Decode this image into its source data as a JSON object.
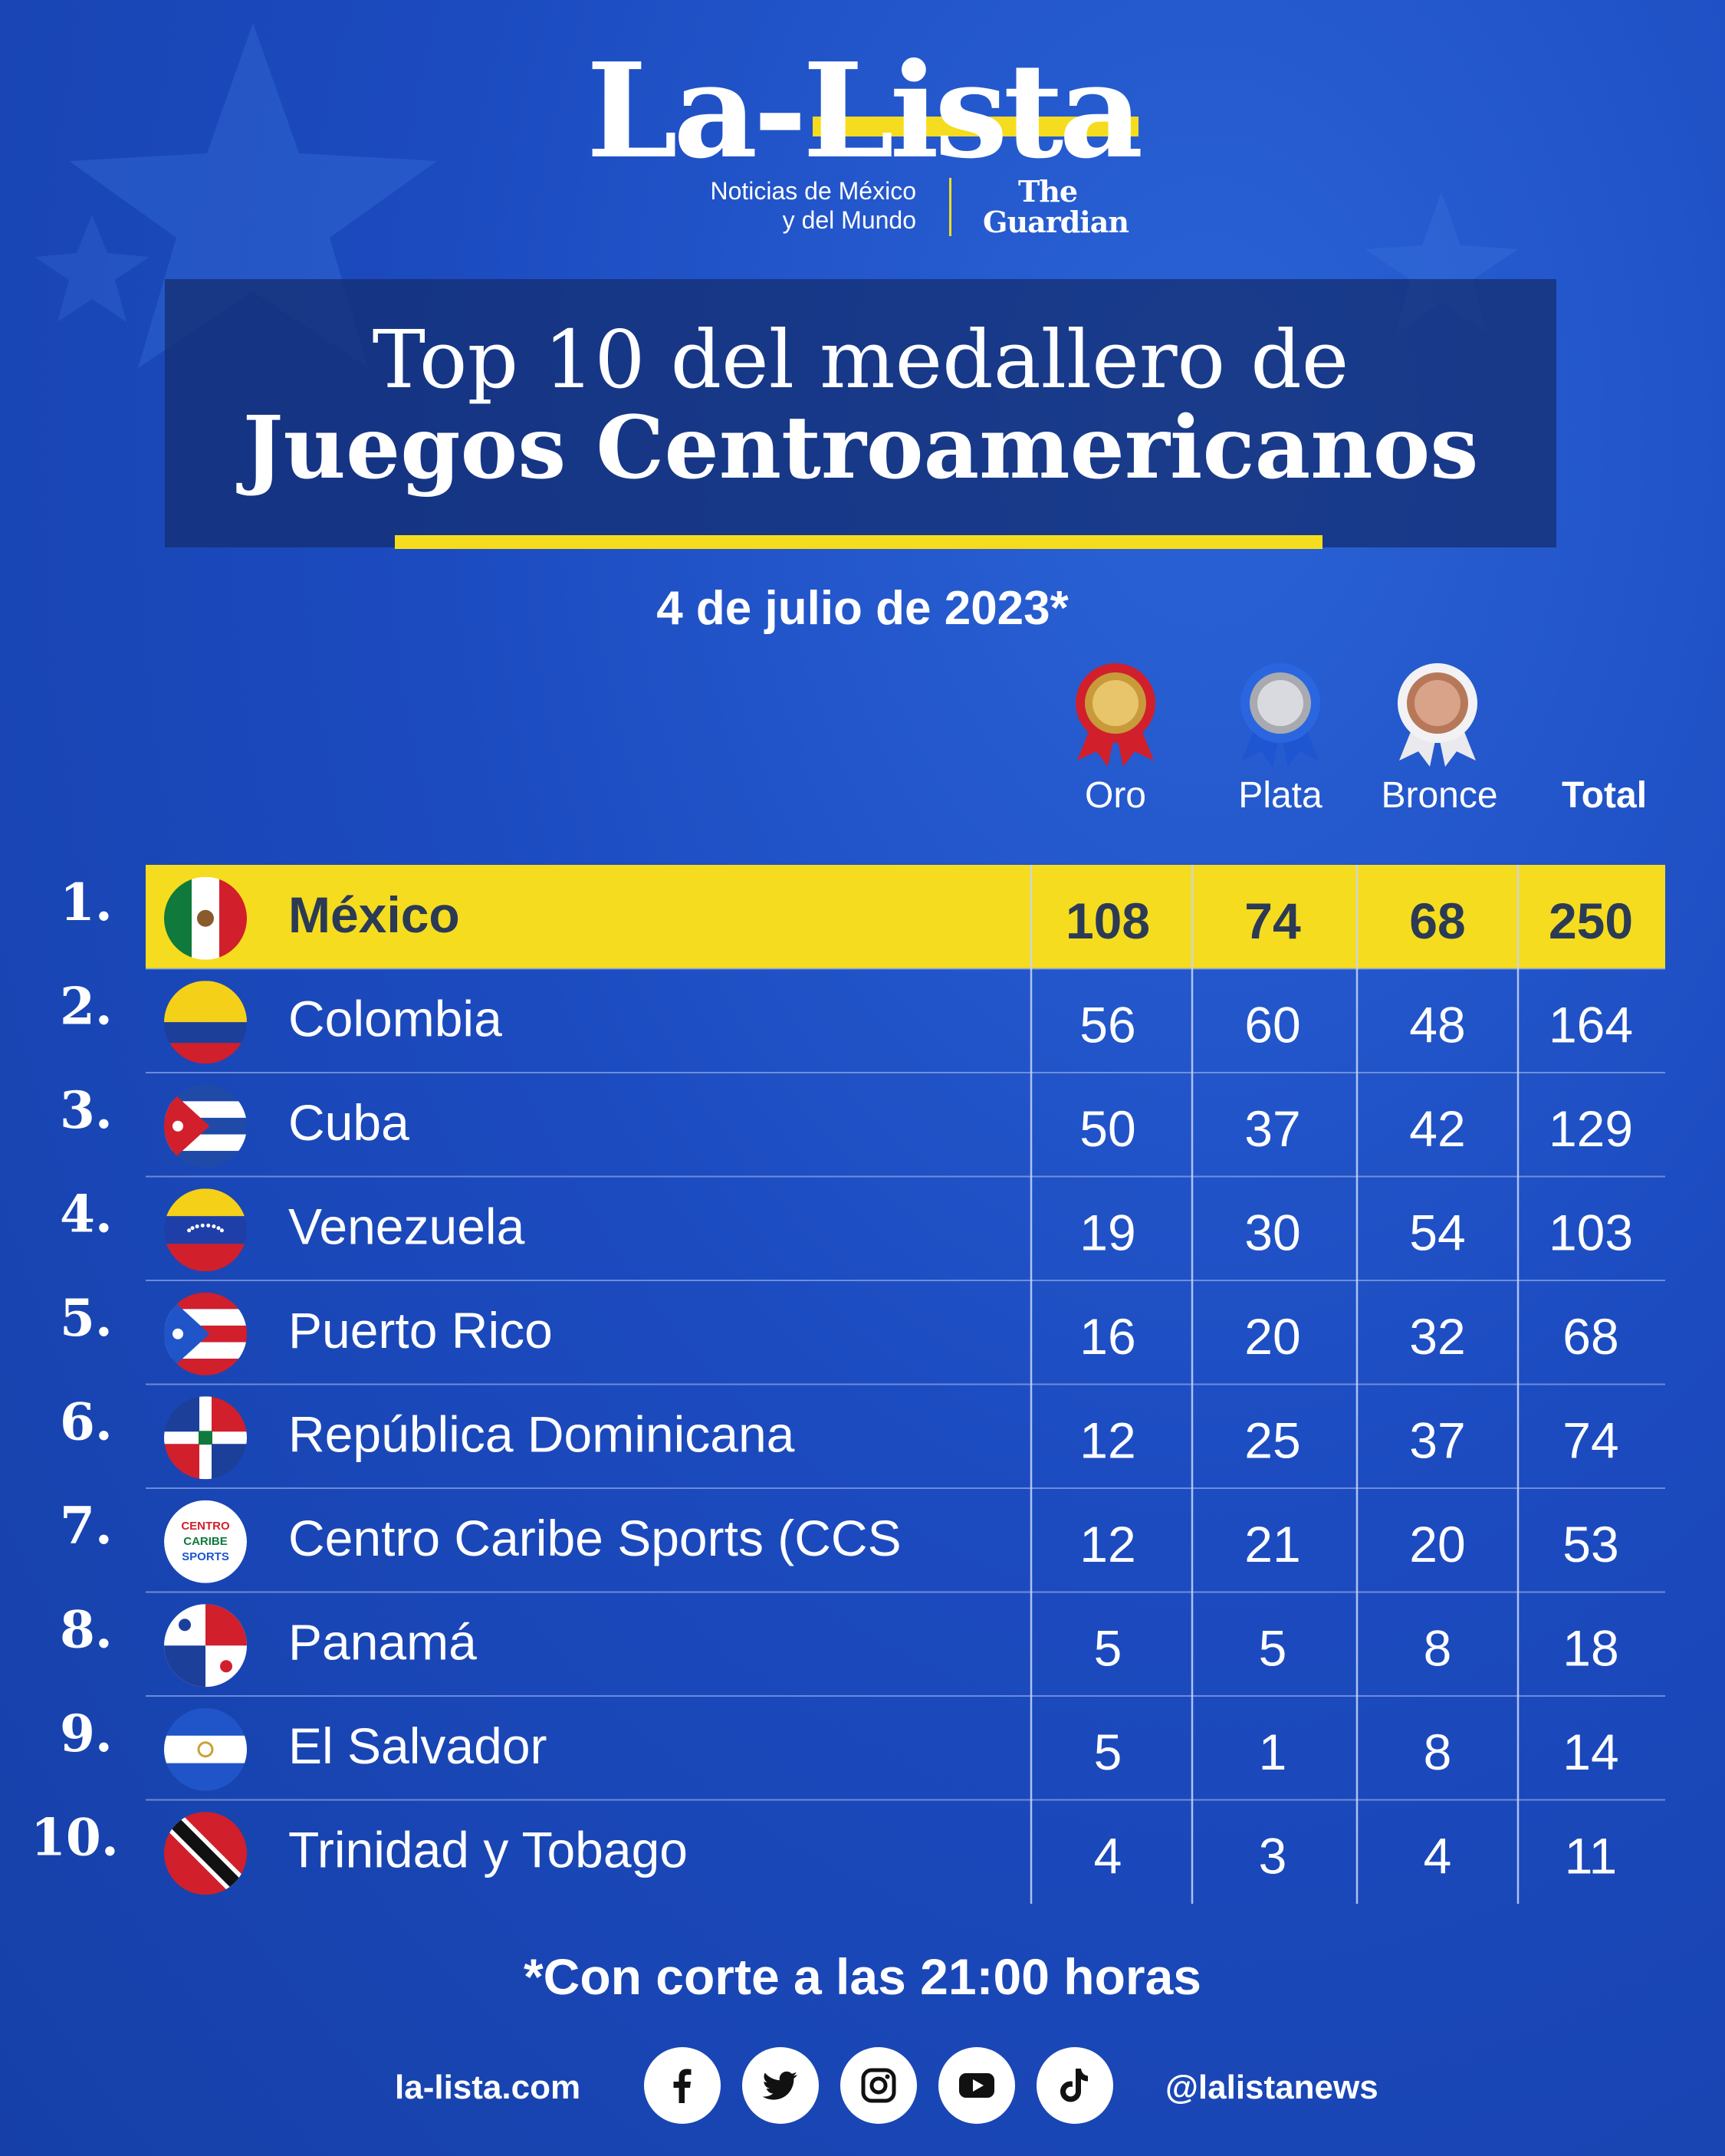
{
  "brand": {
    "logo": "La-Lista",
    "tagline_line1": "Noticias de México",
    "tagline_line2": "y del Mundo",
    "partner_line1": "The",
    "partner_line2": "Guardian"
  },
  "title_line1": "Top 10 del medallero de",
  "title_line2": "Juegos Centroamericanos",
  "date": "4 de julio de 2023*",
  "footnote": "*Con corte a las 21:00 horas",
  "footer": {
    "site": "la-lista.com",
    "handle": "@lalistanews",
    "social_icons": [
      "facebook-icon",
      "twitter-icon",
      "instagram-icon",
      "youtube-icon",
      "tiktok-icon"
    ]
  },
  "colors": {
    "background": "#1c4bc0",
    "highlight": "#f5dc1e",
    "highlight_text": "#2b3a55",
    "title_box": "#142d6e"
  },
  "chart_data": {
    "type": "table",
    "columns": [
      "Oro",
      "Plata",
      "Bronce",
      "Total"
    ],
    "highlight_row": 0,
    "rows": [
      {
        "rank": "1.",
        "country": "México",
        "flag": "mexico-flag",
        "values": [
          108,
          74,
          68,
          250
        ]
      },
      {
        "rank": "2.",
        "country": "Colombia",
        "flag": "colombia-flag",
        "values": [
          56,
          60,
          48,
          164
        ]
      },
      {
        "rank": "3.",
        "country": "Cuba",
        "flag": "cuba-flag",
        "values": [
          50,
          37,
          42,
          129
        ]
      },
      {
        "rank": "4.",
        "country": "Venezuela",
        "flag": "venezuela-flag",
        "values": [
          19,
          30,
          54,
          103
        ]
      },
      {
        "rank": "5.",
        "country": "Puerto Rico",
        "flag": "puerto-rico-flag",
        "values": [
          16,
          20,
          32,
          68
        ]
      },
      {
        "rank": "6.",
        "country": "República Dominicana",
        "flag": "dominican-republic-flag",
        "values": [
          12,
          25,
          37,
          74
        ]
      },
      {
        "rank": "7.",
        "country": "Centro Caribe Sports (CCS",
        "flag": "ccs-logo",
        "values": [
          12,
          21,
          20,
          53
        ]
      },
      {
        "rank": "8.",
        "country": "Panamá",
        "flag": "panama-flag",
        "values": [
          5,
          5,
          8,
          18
        ]
      },
      {
        "rank": "9.",
        "country": "El Salvador",
        "flag": "el-salvador-flag",
        "values": [
          5,
          1,
          8,
          14
        ]
      },
      {
        "rank": "10.",
        "country": "Trinidad y Tobago",
        "flag": "trinidad-tobago-flag",
        "values": [
          4,
          3,
          4,
          11
        ]
      }
    ],
    "ccs_logo_text": [
      "CENTRO",
      "CARIBE",
      "SPORTS"
    ]
  }
}
